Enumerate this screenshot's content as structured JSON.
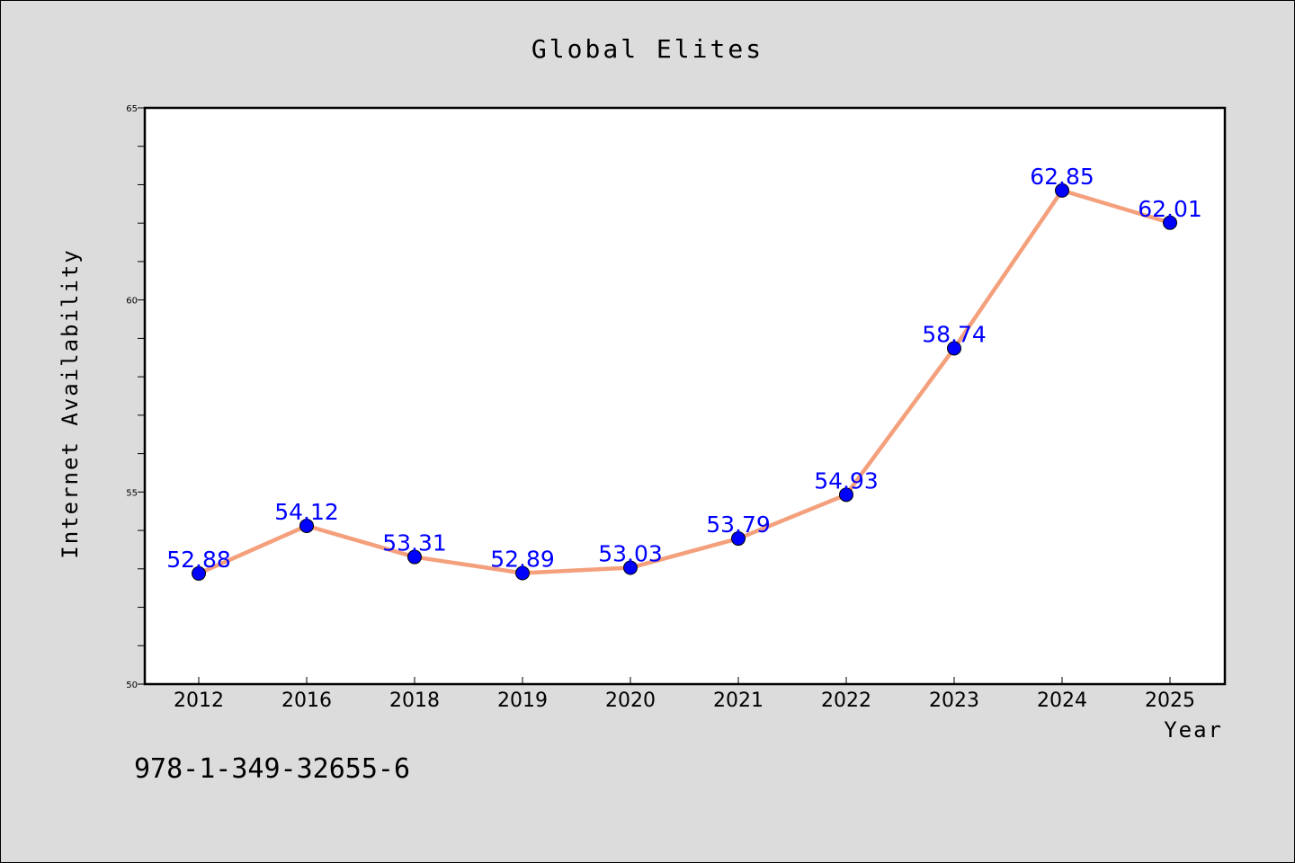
{
  "chart_data": {
    "type": "line",
    "title": "Global Elites",
    "xlabel": "Year",
    "ylabel": "Internet Availability",
    "categories": [
      "2012",
      "2016",
      "2018",
      "2019",
      "2020",
      "2021",
      "2022",
      "2023",
      "2024",
      "2025"
    ],
    "series": [
      {
        "values": [
          52.88,
          54.12,
          53.31,
          52.89,
          53.03,
          53.79,
          54.93,
          58.74,
          62.85,
          62.01
        ],
        "labels": [
          "52.88",
          "54.12",
          "53.31",
          "52.89",
          "53.03",
          "53.79",
          "54.93",
          "58.74",
          "62.85",
          "62.01"
        ]
      }
    ],
    "ylim": [
      50,
      65
    ],
    "yticks": [
      "50",
      "55",
      "60",
      "65"
    ],
    "grid": false,
    "line_color": "#f4a07c",
    "marker_color": "#0000ff",
    "label_color": "#0000ff"
  },
  "footer": {
    "isbn": "978-1-349-32655-6"
  }
}
